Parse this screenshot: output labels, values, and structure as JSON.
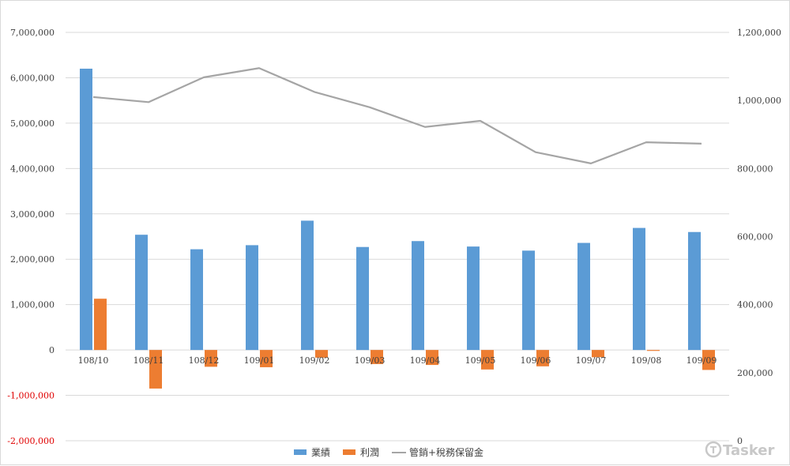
{
  "chart_data": {
    "type": "bar",
    "categories": [
      "108/10",
      "108/11",
      "108/12",
      "109/01",
      "109/02",
      "109/03",
      "109/04",
      "109/05",
      "109/06",
      "109/07",
      "109/08",
      "109/09"
    ],
    "series": [
      {
        "name": "業績",
        "type": "bar",
        "axis": "left",
        "color": "#5b9bd5",
        "values": [
          6200000,
          2540000,
          2220000,
          2310000,
          2850000,
          2270000,
          2400000,
          2280000,
          2190000,
          2360000,
          2690000,
          2600000
        ]
      },
      {
        "name": "利潤",
        "type": "bar",
        "axis": "left",
        "color": "#ed7d31",
        "values": [
          1130000,
          -850000,
          -370000,
          -380000,
          -170000,
          -310000,
          -330000,
          -430000,
          -360000,
          -160000,
          -20000,
          -440000
        ]
      },
      {
        "name": "管銷+稅務保留金",
        "type": "line",
        "axis": "right",
        "color": "#a5a5a5",
        "values": [
          1010000,
          995000,
          1068000,
          1095000,
          1025000,
          980000,
          922000,
          940000,
          848000,
          815000,
          877000,
          873000
        ]
      }
    ],
    "y_left": {
      "min": -2000000,
      "max": 7000000,
      "step": 1000000,
      "tick_labels": [
        "-2,000,000",
        "-1,000,000",
        "0",
        "1,000,000",
        "2,000,000",
        "3,000,000",
        "4,000,000",
        "5,000,000",
        "6,000,000",
        "7,000,000"
      ]
    },
    "y_right": {
      "min": 0,
      "max": 1200000,
      "step": 200000,
      "tick_labels": [
        "0",
        "200,000",
        "400,000",
        "600,000",
        "800,000",
        "1,000,000",
        "1,200,000"
      ]
    },
    "grid": true,
    "legend_position": "bottom",
    "watermark": "Tasker"
  }
}
